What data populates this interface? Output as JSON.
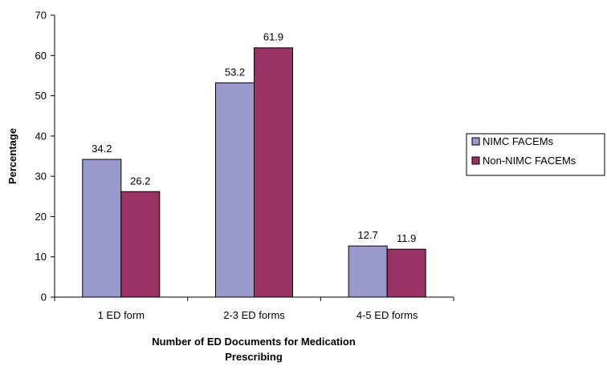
{
  "chart_data": {
    "type": "bar",
    "title": "",
    "xlabel_lines": [
      "Number of ED Documents for Medication",
      "Prescribing"
    ],
    "ylabel": "Percentage",
    "categories": [
      "1 ED form",
      "2-3 ED forms",
      "4-5 ED forms"
    ],
    "series": [
      {
        "name": "NIMC FACEMs",
        "values": [
          34.2,
          53.2,
          12.7
        ],
        "color": "#9999cc"
      },
      {
        "name": "Non-NIMC FACEMs",
        "values": [
          26.2,
          61.9,
          11.9
        ],
        "color": "#993366"
      }
    ],
    "data_labels": [
      [
        "34.2",
        "53.2",
        "12.7"
      ],
      [
        "26.2",
        "61.9",
        "11.9"
      ]
    ],
    "ylim": [
      0,
      70
    ],
    "yticks": [
      0,
      10,
      20,
      30,
      40,
      50,
      60,
      70
    ],
    "grid": false,
    "legend_position": "right"
  }
}
